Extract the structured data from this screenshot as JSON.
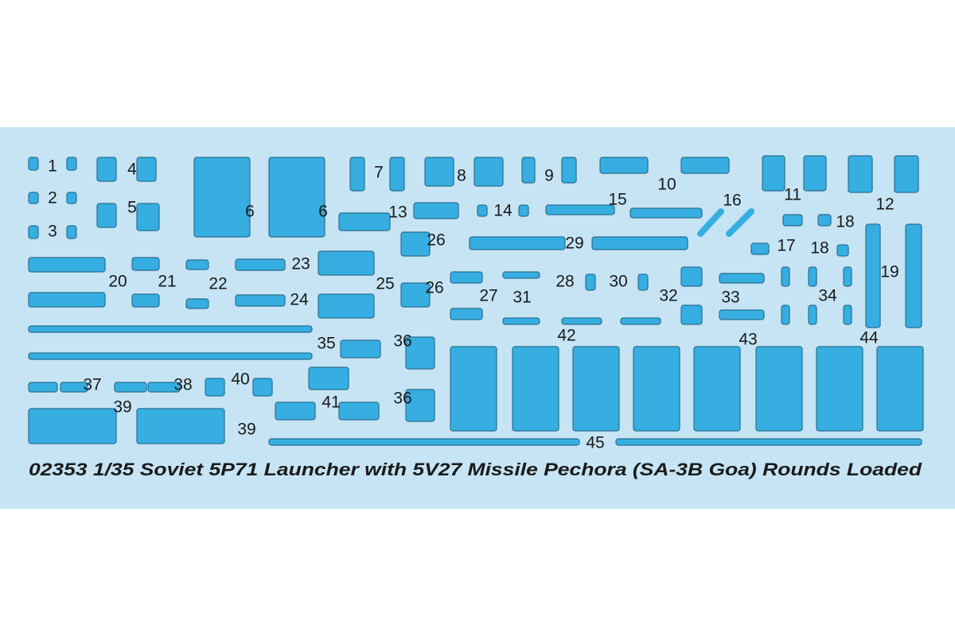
{
  "title": "02353 1/35  Soviet 5P71 Launcher with 5V27 Missile Pechora (SA-3B Goa) Rounds Loaded",
  "labels": [
    "1",
    "2",
    "3",
    "4",
    "5",
    "6",
    "6",
    "7",
    "8",
    "9",
    "10",
    "11",
    "12",
    "13",
    "14",
    "15",
    "16",
    "17",
    "18",
    "18",
    "19",
    "20",
    "21",
    "22",
    "23",
    "24",
    "25",
    "26",
    "26",
    "27",
    "28",
    "29",
    "30",
    "31",
    "32",
    "33",
    "34",
    "35",
    "36",
    "36",
    "37",
    "38",
    "39",
    "39",
    "40",
    "41",
    "42",
    "43",
    "44",
    "45"
  ]
}
